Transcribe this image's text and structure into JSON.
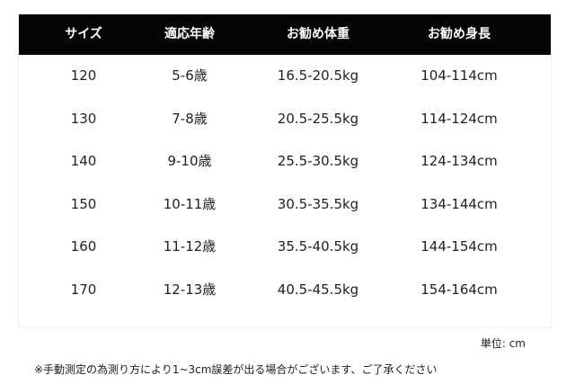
{
  "headers": [
    "サイズ",
    "適応年齢",
    "お勧め体重",
    "お勧め身長"
  ],
  "rows": [
    [
      "120",
      "5-6歳",
      "16.5-20.5kg",
      "104-114cm"
    ],
    [
      "130",
      "7-8歳",
      "20.5-25.5kg",
      "114-124cm"
    ],
    [
      "140",
      "9-10歳",
      "25.5-30.5kg",
      "124-134cm"
    ],
    [
      "150",
      "10-11歳",
      "30.5-35.5kg",
      "134-144cm"
    ],
    [
      "160",
      "11-12歳",
      "35.5-40.5kg",
      "144-154cm"
    ],
    [
      "170",
      "12-13歳",
      "40.5-45.5kg",
      "154-164cm"
    ]
  ],
  "unit": "単位: cm",
  "note": "※手動測定の為測り方により1~3cm誤差が出る場合がございます、ご了承ください"
}
